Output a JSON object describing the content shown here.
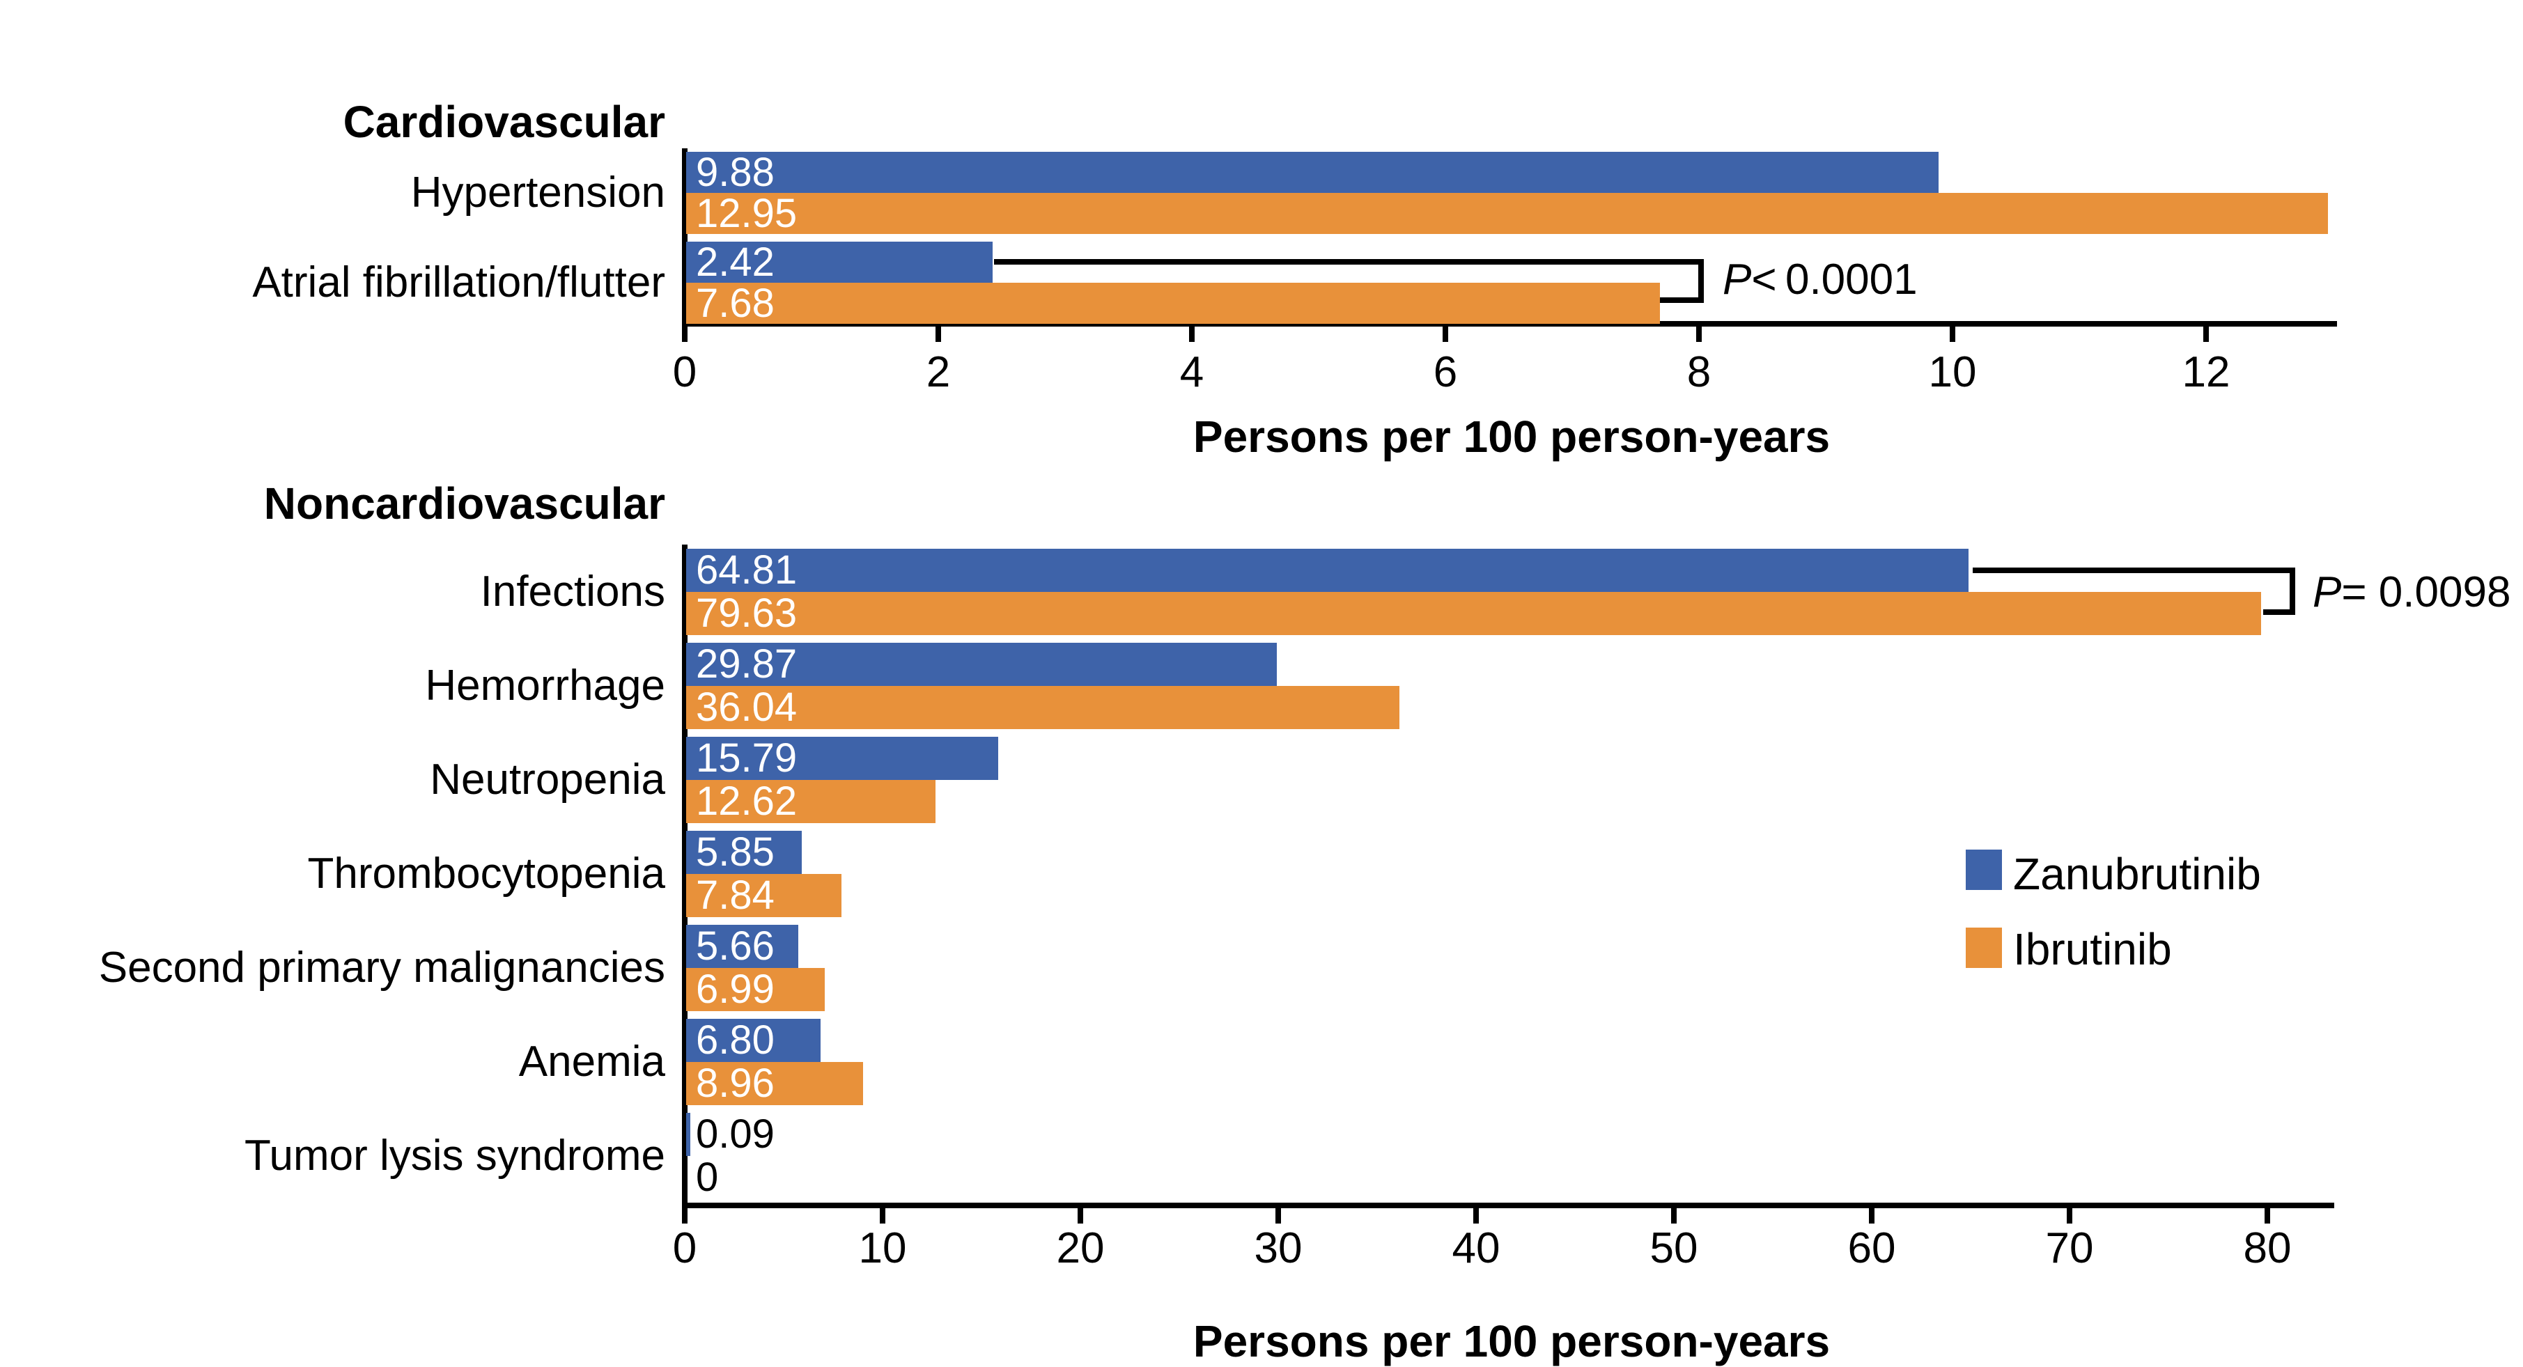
{
  "figure": {
    "background_color": "#ffffff",
    "axis_color": "#000000",
    "legend": {
      "position": "right-middle-of-lower-panel",
      "items": [
        {
          "label": "Zanubrutinib",
          "color": "#3E63A9"
        },
        {
          "label": "Ibrutinib",
          "color": "#E8913A"
        }
      ]
    }
  },
  "chart_data": [
    {
      "type": "bar",
      "orientation": "horizontal",
      "group_title": "Cardiovascular",
      "categories": [
        "Hypertension",
        "Atrial fibrillation/flutter"
      ],
      "series": [
        {
          "name": "Zanubrutinib",
          "color": "#3E63A9",
          "values": [
            9.88,
            2.42
          ],
          "value_labels": [
            "9.88",
            "2.42"
          ]
        },
        {
          "name": "Ibrutinib",
          "color": "#E8913A",
          "values": [
            12.95,
            7.68
          ],
          "value_labels": [
            "12.95",
            "7.68"
          ]
        }
      ],
      "xlabel": "Persons per 100 person-years",
      "xlim": [
        0,
        13.05
      ],
      "xticks": [
        0,
        2,
        4,
        6,
        8,
        10,
        12
      ],
      "grid": false,
      "annotations": [
        {
          "p": "P",
          "rest": "< 0.0001",
          "category": "Atrial fibrillation/flutter"
        }
      ]
    },
    {
      "type": "bar",
      "orientation": "horizontal",
      "group_title": "Noncardiovascular",
      "categories": [
        "Infections",
        "Hemorrhage",
        "Neutropenia",
        "Thrombocytopenia",
        "Second primary malignancies",
        "Anemia",
        "Tumor lysis syndrome"
      ],
      "series": [
        {
          "name": "Zanubrutinib",
          "color": "#3E63A9",
          "values": [
            64.81,
            29.87,
            15.79,
            5.85,
            5.66,
            6.8,
            0.09
          ],
          "value_labels": [
            "64.81",
            "29.87",
            "15.79",
            "5.85",
            "5.66",
            "6.80",
            "0.09"
          ]
        },
        {
          "name": "Ibrutinib",
          "color": "#E8913A",
          "values": [
            79.63,
            36.04,
            12.62,
            7.84,
            6.99,
            8.96,
            0
          ],
          "value_labels": [
            "79.63",
            "36.04",
            "12.62",
            "7.84",
            "6.99",
            "8.96",
            "0"
          ]
        }
      ],
      "xlabel": "Persons per 100 person-years",
      "xlim": [
        0,
        83.5
      ],
      "xticks": [
        0,
        10,
        20,
        30,
        40,
        50,
        60,
        70,
        80
      ],
      "grid": false,
      "annotations": [
        {
          "p": "P",
          "rest": "= 0.0098",
          "category": "Infections"
        }
      ]
    }
  ]
}
